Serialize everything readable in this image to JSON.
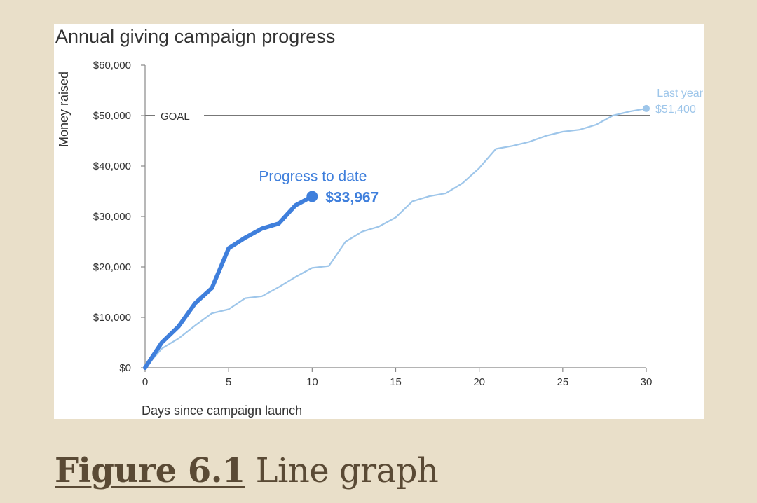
{
  "figure_caption": {
    "label": "Figure 6.1",
    "text": "Line graph"
  },
  "chart_data": {
    "type": "line",
    "title": "Annual giving campaign progress",
    "xlabel": "Days since campaign launch",
    "ylabel": "Money raised",
    "xlim": [
      0,
      30
    ],
    "ylim": [
      0,
      60000
    ],
    "x_ticks": [
      "0",
      "5",
      "10",
      "15",
      "20",
      "25",
      "30"
    ],
    "y_ticks": [
      "$0",
      "$10,000",
      "$20,000",
      "$30,000",
      "$40,000",
      "$50,000",
      "$60,000"
    ],
    "goal": {
      "label": "GOAL",
      "value": 50000
    },
    "series": [
      {
        "name": "Last year",
        "color": "#9ec6ea",
        "end_label": "$51,400",
        "x": [
          0,
          1,
          2,
          3,
          4,
          5,
          6,
          7,
          8,
          9,
          10,
          11,
          12,
          13,
          14,
          15,
          16,
          17,
          18,
          19,
          20,
          21,
          22,
          23,
          24,
          25,
          26,
          27,
          28,
          29,
          30
        ],
        "values": [
          0,
          3800,
          5800,
          8400,
          10800,
          11600,
          13800,
          14200,
          16000,
          18000,
          19800,
          20200,
          25000,
          27000,
          28000,
          29800,
          33000,
          34000,
          34600,
          36600,
          39600,
          43400,
          44000,
          44800,
          46000,
          46800,
          47200,
          48200,
          50000,
          50800,
          51400
        ]
      },
      {
        "name": "Progress to date",
        "color": "#3f7fdc",
        "end_label": "$33,967",
        "x": [
          0,
          1,
          2,
          3,
          4,
          5,
          6,
          7,
          8,
          9,
          10
        ],
        "values": [
          0,
          5000,
          8200,
          12800,
          15800,
          23700,
          25800,
          27600,
          28600,
          32200,
          33967
        ]
      }
    ]
  }
}
